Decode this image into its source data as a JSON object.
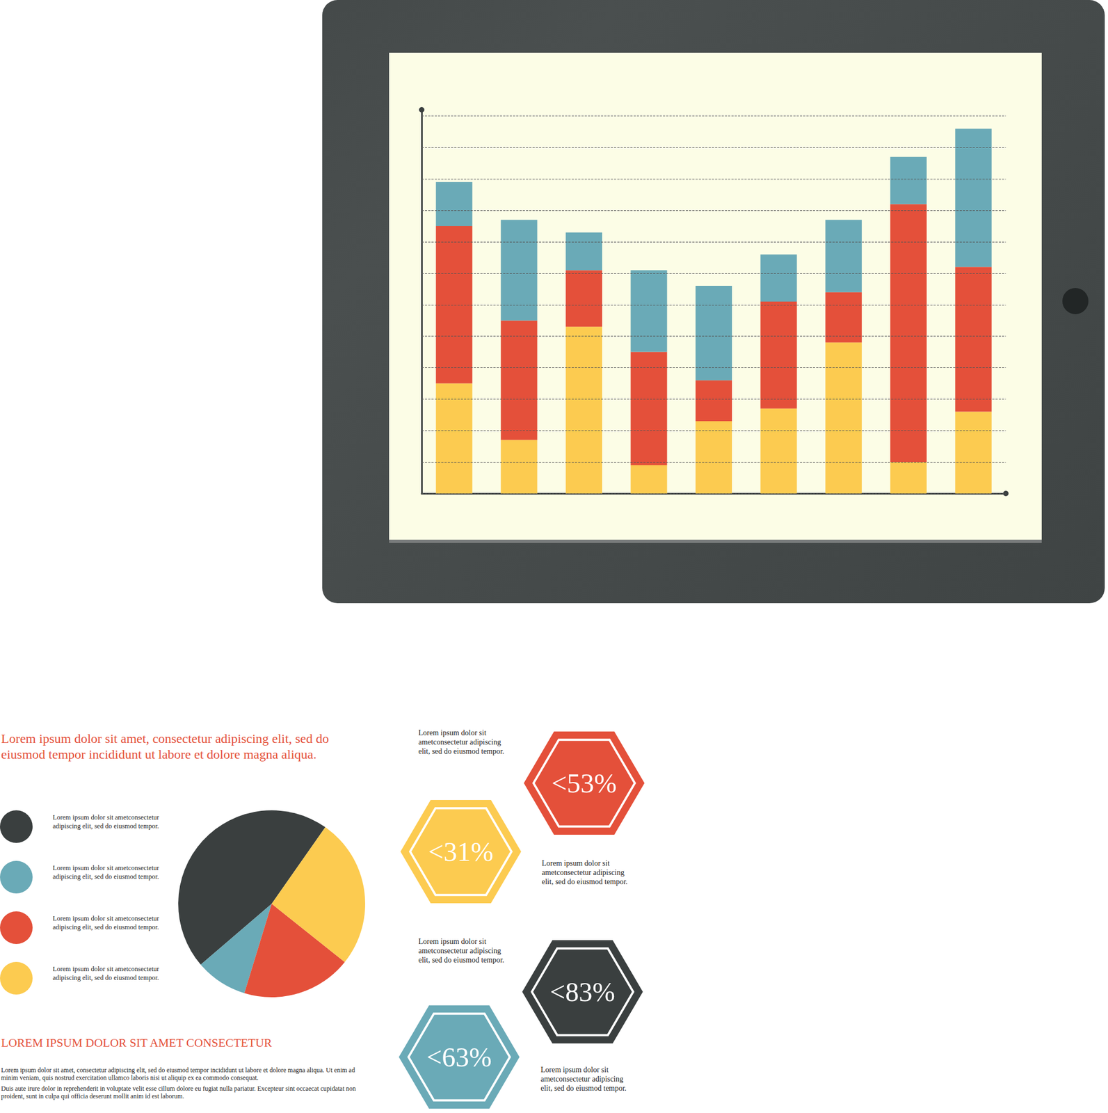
{
  "chart_data": [
    {
      "type": "bar",
      "stacked": true,
      "categories": [
        null,
        null,
        null,
        null,
        null,
        null,
        null,
        null,
        null
      ],
      "series": [
        {
          "color": "#fccb50",
          "values": [
            3.5,
            1.7,
            5.3,
            0.9,
            2.3,
            2.7,
            4.8,
            1.0,
            2.6
          ]
        },
        {
          "color": "#e4503a",
          "values": [
            5.0,
            3.8,
            1.8,
            3.6,
            1.3,
            3.4,
            1.6,
            8.2,
            4.6
          ]
        },
        {
          "color": "#6aaab7",
          "values": [
            1.4,
            3.2,
            1.2,
            2.6,
            3.0,
            1.5,
            2.3,
            1.5,
            4.4
          ]
        }
      ],
      "ylim": [
        0,
        12.2
      ],
      "yticks": [
        0,
        1,
        2,
        3,
        4,
        5,
        6,
        7,
        8,
        9,
        10,
        11,
        12
      ],
      "grid": true,
      "tick_labels": false
    },
    {
      "type": "pie",
      "values": [
        46,
        9,
        19,
        26
      ],
      "colors": [
        "#3a3f3f",
        "#6aaab7",
        "#e4503a",
        "#fccb50"
      ]
    }
  ],
  "document": {
    "heading": "Lorem ipsum dolor sit amet, consectetur adipiscing elit, sed do eiusmod tempor incididunt ut labore et dolore magna aliqua.",
    "legend": [
      "Lorem ipsum dolor sit ametconsectetur adipiscing elit, sed do eiusmod tempor.",
      "Lorem ipsum dolor sit ametconsectetur adipiscing elit, sed do eiusmod tempor.",
      "Lorem ipsum dolor sit ametconsectetur adipiscing elit, sed do eiusmod tempor.",
      "Lorem ipsum dolor sit ametconsectetur adipiscing elit, sed do eiusmod tempor."
    ],
    "subheading": "LOREM IPSUM DOLOR SIT AMET CONSECTETUR",
    "paragraphs": [
      "Lorem ipsum dolor sit amet, consectetur adipiscing elit, sed do eiusmod tempor incididunt ut labore et dolore magna aliqua. Ut enim ad minim veniam, quis nostrud exercitation ullamco laboris nisi ut aliquip ex ea commodo consequat.",
      "Duis aute irure dolor in reprehenderit in voluptate velit esse cillum dolore eu fugiat nulla pariatur. Excepteur sint occaecat cupidatat non proident, sunt in culpa qui officia deserunt mollit anim id est laborum."
    ],
    "hexagons": [
      {
        "label": "<53%",
        "color": "#e4503a"
      },
      {
        "label": "<31%",
        "color": "#fccb50"
      },
      {
        "label": "<83%",
        "color": "#3a3f3f"
      },
      {
        "label": "<63%",
        "color": "#6aaab7"
      }
    ],
    "captions": [
      "Lorem ipsum dolor sit ametconsectetur adipiscing elit, sed do eiusmod tempor.",
      "Lorem ipsum dolor sit ametconsectetur adipiscing elit, sed do eiusmod tempor.",
      "Lorem ipsum dolor sit ametconsectetur adipiscing elit, sed do eiusmod tempor.",
      "Lorem ipsum dolor sit ametconsectetur adipiscing elit, sed do eiusmod tempor."
    ]
  }
}
